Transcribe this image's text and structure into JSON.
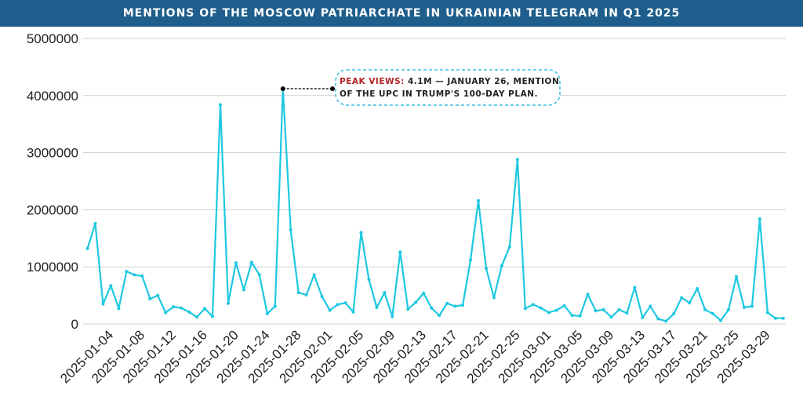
{
  "chart_data": {
    "type": "line",
    "title": "MENTIONS OF THE MOSCOW PATRIARCHATE IN UKRAINIAN TELEGRAM IN Q1 2025",
    "xlabel": "",
    "ylabel": "",
    "ylim": [
      0,
      5000000
    ],
    "grid": true,
    "y_ticks": [
      "0",
      "1000000",
      "2000000",
      "3000000",
      "4000000",
      "5000000"
    ],
    "x_ticks": [
      "2025-01-04",
      "2025-01-08",
      "2025-01-12",
      "2025-01-16",
      "2025-01-20",
      "2025-01-24",
      "2025-01-28",
      "2025-02-01",
      "2025-02-05",
      "2025-02-09",
      "2025-02-13",
      "2025-02-17",
      "2025-02-21",
      "2025-02-25",
      "2025-03-01",
      "2025-03-05",
      "2025-03-09",
      "2025-03-13",
      "2025-03-17",
      "2025-03-21",
      "2025-03-25",
      "2025-03-29"
    ],
    "line_color": "#1ec8e0",
    "x_start": "2025-01-01",
    "values": [
      1320000,
      1760000,
      350000,
      670000,
      270000,
      920000,
      860000,
      840000,
      440000,
      500000,
      200000,
      300000,
      280000,
      210000,
      120000,
      270000,
      130000,
      3840000,
      360000,
      1070000,
      600000,
      1080000,
      860000,
      180000,
      310000,
      4120000,
      1650000,
      550000,
      510000,
      860000,
      480000,
      240000,
      340000,
      370000,
      210000,
      1600000,
      780000,
      290000,
      550000,
      130000,
      1260000,
      260000,
      380000,
      540000,
      280000,
      150000,
      360000,
      310000,
      330000,
      1120000,
      2160000,
      970000,
      460000,
      1020000,
      1350000,
      2880000,
      270000,
      340000,
      280000,
      200000,
      240000,
      320000,
      150000,
      140000,
      520000,
      230000,
      250000,
      120000,
      250000,
      190000,
      640000,
      110000,
      310000,
      90000,
      50000,
      180000,
      460000,
      370000,
      620000,
      250000,
      180000,
      60000,
      250000,
      830000,
      290000,
      310000,
      1840000,
      200000,
      100000,
      100000
    ],
    "annotation": {
      "label": "PEAK VIEWS:",
      "text_line1": "4.1M — JANUARY 26, MENTION",
      "text_line2": "OF THE UPC IN TRUMP'S 100-DAY PLAN.",
      "date": "2025-01-26",
      "value": 4120000,
      "label_color": "#b22222",
      "border_color": "#3bbde0"
    }
  }
}
